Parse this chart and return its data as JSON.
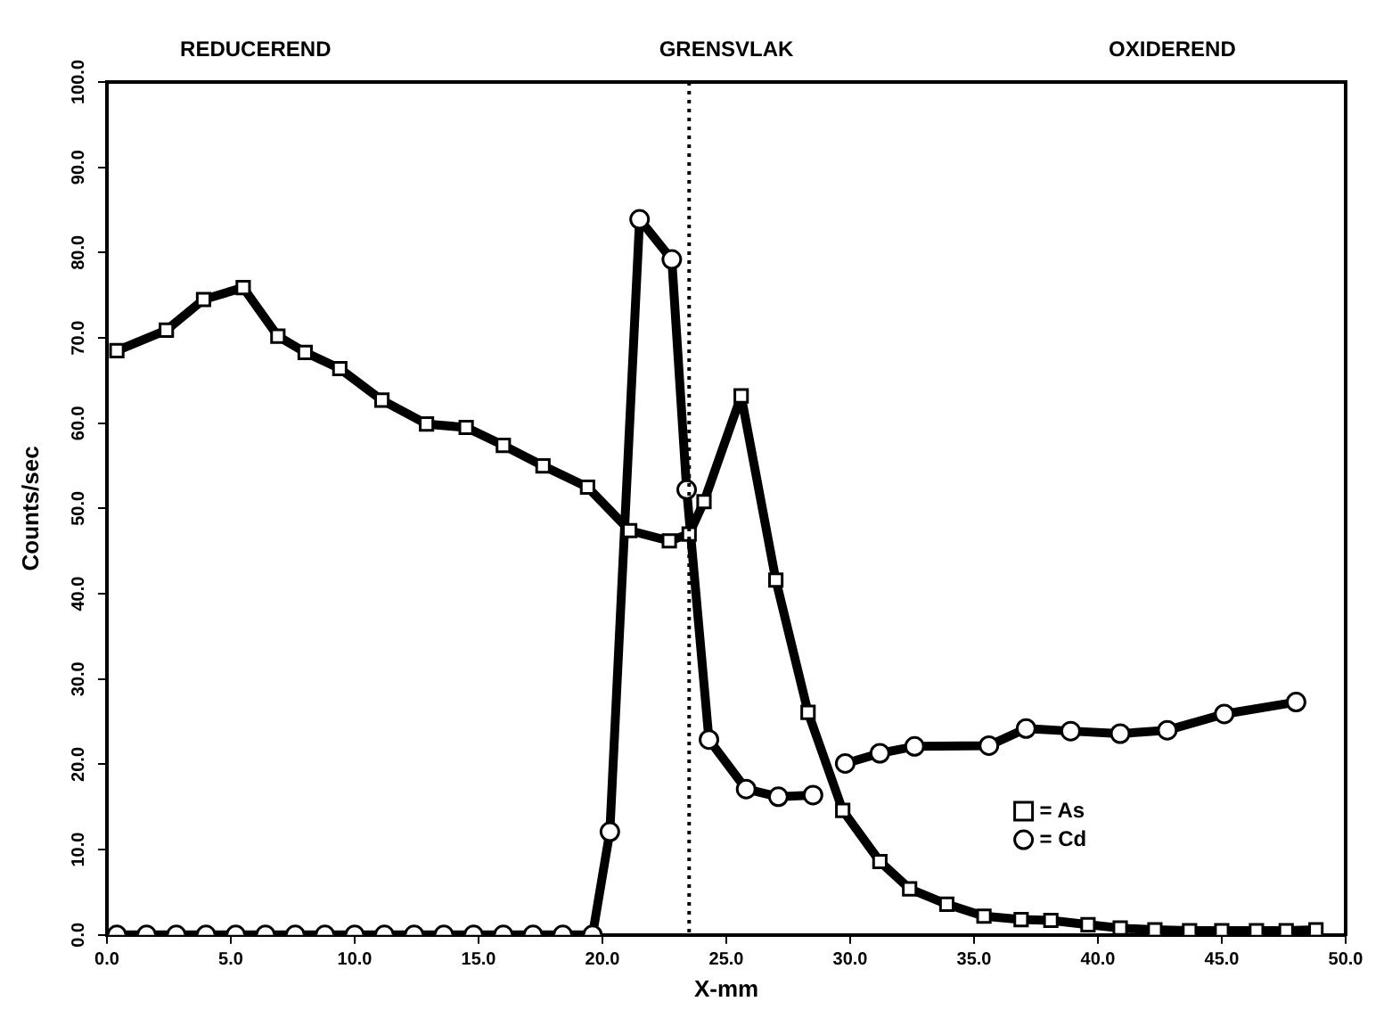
{
  "chart_data": {
    "type": "line",
    "xlabel": "X-mm",
    "ylabel": "Counts/sec",
    "annotations": [
      "REDUCEREND",
      "GRENSVLAK",
      "OXIDEREND"
    ],
    "xlim": [
      0,
      50
    ],
    "xticks": [
      {
        "value": 0,
        "label": "0.0"
      },
      {
        "value": 5,
        "label": "5.0"
      },
      {
        "value": 10,
        "label": "10.0"
      },
      {
        "value": 15,
        "label": "15.0"
      },
      {
        "value": 20,
        "label": "20.0"
      },
      {
        "value": 25,
        "label": "25.0"
      },
      {
        "value": 30,
        "label": "30.0"
      },
      {
        "value": 35,
        "label": "35.0"
      },
      {
        "value": 40,
        "label": "40.0"
      },
      {
        "value": 45,
        "label": "45.0"
      },
      {
        "value": 50,
        "label": "50.0"
      }
    ],
    "ylim": [
      0,
      100
    ],
    "yticks": [
      {
        "value": 0,
        "label": "0.0"
      },
      {
        "value": 10,
        "label": "10.0"
      },
      {
        "value": 20,
        "label": "20.0"
      },
      {
        "value": 30,
        "label": "30.0"
      },
      {
        "value": 40,
        "label": "40.0"
      },
      {
        "value": 50,
        "label": "50.0"
      },
      {
        "value": 60,
        "label": "60.0"
      },
      {
        "value": 70,
        "label": "70.0"
      },
      {
        "value": 80,
        "label": "80.0"
      },
      {
        "value": 90,
        "label": "90.0"
      },
      {
        "value": 100,
        "label": "100.0"
      }
    ],
    "grid": false,
    "legend": "bottom right",
    "line_style": "solid",
    "ref_lines": [
      {
        "axis": "x",
        "value": 23.5,
        "line_style": "dotted",
        "color": "#000000"
      }
    ],
    "series": [
      {
        "name": "= As",
        "color": "#000000",
        "marker": "square",
        "x": [
          0.4,
          2.4,
          3.9,
          5.5,
          6.9,
          8.0,
          9.4,
          11.1,
          12.9,
          14.5,
          16.0,
          17.6,
          19.4,
          21.1,
          22.7,
          23.5,
          24.1,
          25.6,
          27.0,
          28.3,
          29.7,
          31.2,
          32.4,
          33.9,
          35.4,
          36.9,
          38.1,
          39.6,
          40.9,
          42.3,
          43.7,
          45.0,
          46.4,
          47.6,
          48.8
        ],
        "values": [
          68.5,
          70.9,
          74.5,
          75.9,
          70.2,
          68.3,
          66.4,
          62.7,
          59.9,
          59.5,
          57.4,
          55.0,
          52.5,
          47.4,
          46.2,
          47.0,
          50.8,
          63.2,
          41.6,
          26.1,
          14.6,
          8.6,
          5.4,
          3.6,
          2.2,
          1.8,
          1.7,
          1.2,
          0.8,
          0.6,
          0.5,
          0.5,
          0.5,
          0.5,
          0.6
        ]
      },
      {
        "name": "= Cd",
        "color": "#000000",
        "marker": "circle",
        "x": [
          0.4,
          1.6,
          2.8,
          4.0,
          5.2,
          6.4,
          7.6,
          8.8,
          10.0,
          11.2,
          12.4,
          13.6,
          14.8,
          16.0,
          17.2,
          18.4,
          19.6,
          20.3,
          21.5,
          22.8,
          23.4,
          24.3,
          25.8,
          27.1,
          28.5,
          29.1,
          29.8,
          31.2,
          32.6,
          35.6,
          37.1,
          38.9,
          40.9,
          42.8,
          45.1,
          48.0
        ],
        "values": [
          0,
          0,
          0,
          0,
          0,
          0,
          0,
          0,
          0,
          0,
          0,
          0,
          0,
          0,
          0,
          0,
          0,
          12.1,
          83.9,
          79.2,
          52.2,
          22.9,
          17.1,
          16.2,
          16.4,
          null,
          20.1,
          21.3,
          22.1,
          22.2,
          24.2,
          23.9,
          23.6,
          24.0,
          25.9,
          27.3
        ]
      }
    ]
  }
}
